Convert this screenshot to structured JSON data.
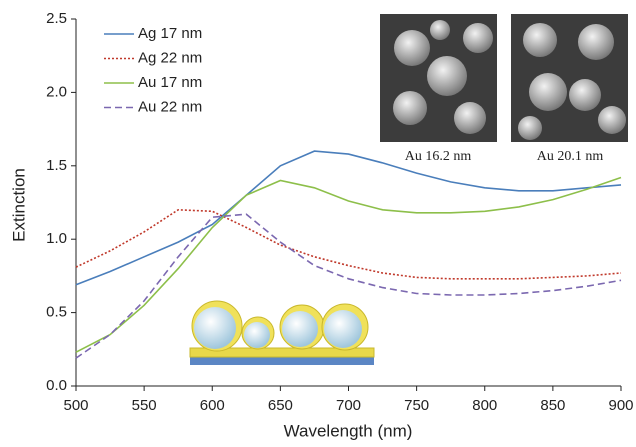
{
  "chart_data": {
    "type": "line",
    "x_label": "Wavelength (nm)",
    "y_label": "Extinction",
    "x": [
      500,
      525,
      550,
      575,
      600,
      625,
      650,
      675,
      700,
      725,
      750,
      775,
      800,
      825,
      850,
      875,
      900
    ],
    "series": [
      {
        "name": "Ag 17 nm",
        "color": "#4a7ebb",
        "style": "solid",
        "values": [
          0.69,
          0.78,
          0.88,
          0.98,
          1.1,
          1.3,
          1.5,
          1.6,
          1.58,
          1.52,
          1.45,
          1.39,
          1.35,
          1.33,
          1.33,
          1.35,
          1.37
        ]
      },
      {
        "name": "Ag 22 nm",
        "color": "#c0392b",
        "style": "dotted",
        "values": [
          0.81,
          0.92,
          1.05,
          1.2,
          1.19,
          1.08,
          0.96,
          0.88,
          0.82,
          0.77,
          0.74,
          0.73,
          0.73,
          0.73,
          0.74,
          0.75,
          0.77
        ]
      },
      {
        "name": "Au 17 nm",
        "color": "#8dbf4a",
        "style": "solid",
        "values": [
          0.23,
          0.35,
          0.55,
          0.8,
          1.08,
          1.3,
          1.4,
          1.35,
          1.26,
          1.2,
          1.18,
          1.18,
          1.19,
          1.22,
          1.27,
          1.34,
          1.42
        ]
      },
      {
        "name": "Au 22 nm",
        "color": "#7b68b0",
        "style": "dashed",
        "values": [
          0.19,
          0.35,
          0.58,
          0.88,
          1.15,
          1.17,
          0.98,
          0.82,
          0.73,
          0.67,
          0.63,
          0.62,
          0.62,
          0.63,
          0.65,
          0.68,
          0.72
        ]
      }
    ],
    "xlim": [
      500,
      900
    ],
    "xticks": [
      500,
      550,
      600,
      650,
      700,
      750,
      800,
      850,
      900
    ],
    "ylim": [
      0,
      2.5
    ],
    "yticks": [
      {
        "value": 0,
        "label": "0.0"
      },
      {
        "value": 0.5,
        "label": "0.5"
      },
      {
        "value": 1,
        "label": "1.0"
      },
      {
        "value": 1.5,
        "label": "1.5"
      },
      {
        "value": 2,
        "label": "2.0"
      },
      {
        "value": 2.5,
        "label": "2.5"
      }
    ],
    "legend": "upper left",
    "insets": [
      "Au 16.2 nm",
      "Au 20.1 nm"
    ]
  }
}
